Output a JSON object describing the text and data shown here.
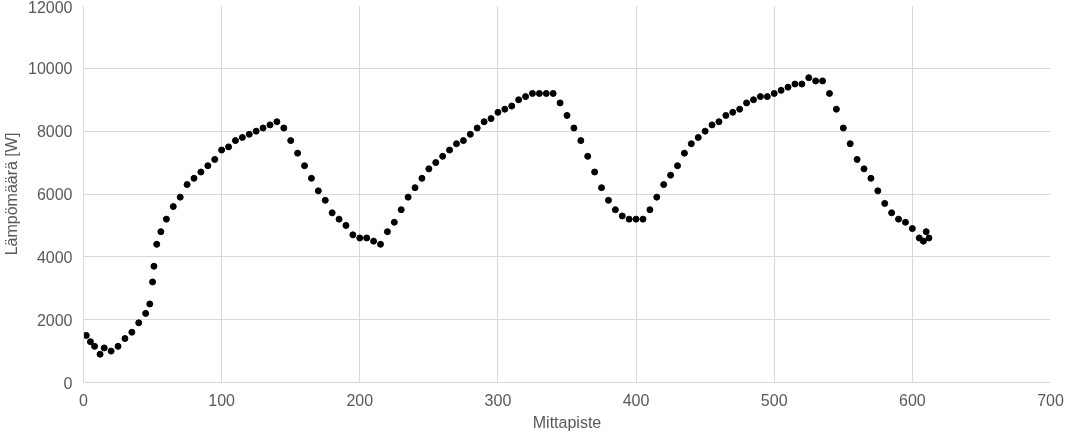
{
  "chart_data": {
    "type": "scatter",
    "xlabel": "Mittapiste",
    "ylabel": "Lämpömäärä [W]",
    "xlim": [
      0,
      700
    ],
    "xticks": [
      0,
      100,
      200,
      300,
      400,
      500,
      600,
      700
    ],
    "ylim": [
      0,
      12000
    ],
    "yticks": [
      0,
      2000,
      4000,
      6000,
      8000,
      10000,
      12000
    ],
    "grid": true,
    "marker": "circle",
    "series": [
      {
        "color": "#000000",
        "x": [
          2,
          5,
          8,
          12,
          15,
          20,
          25,
          30,
          35,
          40,
          45,
          48,
          50,
          51,
          53,
          56,
          60,
          65,
          70,
          75,
          80,
          85,
          90,
          95,
          100,
          105,
          110,
          115,
          120,
          125,
          130,
          135,
          140,
          145,
          150,
          155,
          160,
          165,
          170,
          175,
          180,
          185,
          190,
          195,
          200,
          205,
          210,
          215,
          220,
          225,
          230,
          235,
          240,
          245,
          250,
          255,
          260,
          265,
          270,
          275,
          280,
          285,
          290,
          295,
          300,
          305,
          310,
          315,
          320,
          325,
          330,
          335,
          340,
          345,
          350,
          355,
          360,
          365,
          370,
          375,
          380,
          385,
          390,
          395,
          400,
          405,
          410,
          415,
          420,
          425,
          430,
          435,
          440,
          445,
          450,
          455,
          460,
          465,
          470,
          475,
          480,
          485,
          490,
          495,
          500,
          505,
          510,
          515,
          520,
          525,
          530,
          535,
          540,
          545,
          550,
          555,
          560,
          565,
          570,
          575,
          580,
          585,
          590,
          595,
          600,
          605,
          608,
          610,
          612
        ],
        "values": [
          1500,
          1300,
          1150,
          900,
          1100,
          1000,
          1150,
          1400,
          1600,
          1900,
          2200,
          2500,
          3200,
          3700,
          4400,
          4800,
          5200,
          5600,
          5900,
          6300,
          6500,
          6700,
          6900,
          7100,
          7400,
          7500,
          7700,
          7800,
          7900,
          8000,
          8100,
          8200,
          8300,
          8100,
          7700,
          7300,
          6900,
          6500,
          6100,
          5800,
          5400,
          5200,
          5000,
          4700,
          4600,
          4600,
          4500,
          4400,
          4800,
          5100,
          5500,
          5900,
          6200,
          6500,
          6800,
          7000,
          7200,
          7400,
          7600,
          7700,
          7900,
          8100,
          8300,
          8400,
          8600,
          8700,
          8800,
          9000,
          9100,
          9200,
          9200,
          9200,
          9200,
          8900,
          8500,
          8100,
          7700,
          7200,
          6700,
          6200,
          5800,
          5500,
          5300,
          5200,
          5200,
          5200,
          5500,
          5900,
          6300,
          6600,
          6900,
          7300,
          7600,
          7800,
          8000,
          8200,
          8300,
          8500,
          8600,
          8700,
          8900,
          9000,
          9100,
          9100,
          9200,
          9300,
          9400,
          9500,
          9500,
          9700,
          9600,
          9600,
          9200,
          8700,
          8100,
          7600,
          7100,
          6800,
          6500,
          6100,
          5700,
          5400,
          5200,
          5100,
          4900,
          4600,
          4500,
          4800,
          4600
        ]
      }
    ]
  }
}
